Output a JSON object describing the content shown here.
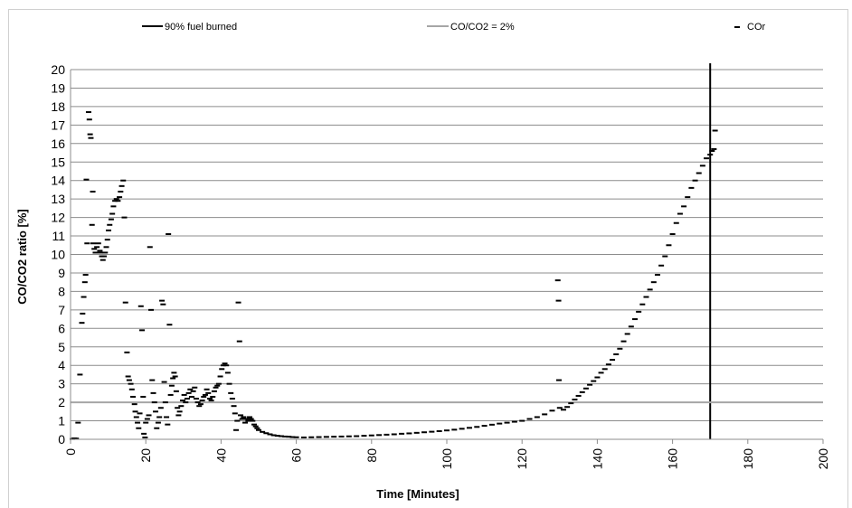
{
  "chart_data": {
    "type": "scatter",
    "xlabel": "Time [Minutes]",
    "ylabel": "CO/CO2 ratio [%]",
    "xlim": [
      0,
      200
    ],
    "ylim": [
      0,
      20
    ],
    "x_ticks": [
      "0",
      "20",
      "40",
      "60",
      "80",
      "100",
      "120",
      "140",
      "160",
      "180",
      "200"
    ],
    "y_ticks": [
      "0",
      "1",
      "2",
      "3",
      "4",
      "5",
      "6",
      "7",
      "8",
      "9",
      "10",
      "11",
      "12",
      "13",
      "14",
      "15",
      "16",
      "17",
      "18",
      "19",
      "20"
    ],
    "grid": "horizontal",
    "legend_position": "top",
    "series": [
      {
        "name": "90% fuel burned",
        "kind": "vertical-line",
        "x": 170,
        "color": "#000000"
      },
      {
        "name": "CO/CO2 = 2%",
        "kind": "horizontal-line",
        "y": 2,
        "color": "#a6a6a6"
      },
      {
        "name": "COr",
        "kind": "markers",
        "color": "#000000",
        "points": [
          [
            0.5,
            0.02
          ],
          [
            1,
            0.05
          ],
          [
            1.5,
            0.04
          ],
          [
            2,
            0.9
          ],
          [
            2.5,
            3.5
          ],
          [
            3,
            6.3
          ],
          [
            3.2,
            6.8
          ],
          [
            3.5,
            7.7
          ],
          [
            3.8,
            8.5
          ],
          [
            4,
            8.9
          ],
          [
            4.2,
            14.05
          ],
          [
            4.4,
            10.6
          ],
          [
            4.8,
            17.7
          ],
          [
            5,
            17.3
          ],
          [
            5.2,
            16.5
          ],
          [
            5.4,
            16.3
          ],
          [
            5.7,
            11.6
          ],
          [
            5.9,
            13.4
          ],
          [
            6,
            10.6
          ],
          [
            6.3,
            10.3
          ],
          [
            6.6,
            10.1
          ],
          [
            7,
            10.4
          ],
          [
            7.4,
            10.6
          ],
          [
            7.8,
            10.2
          ],
          [
            8,
            10.1
          ],
          [
            8.3,
            9.9
          ],
          [
            8.6,
            9.7
          ],
          [
            8.9,
            9.9
          ],
          [
            9.2,
            10.1
          ],
          [
            9.5,
            10.4
          ],
          [
            9.8,
            10.8
          ],
          [
            10.1,
            11.3
          ],
          [
            10.4,
            11.6
          ],
          [
            10.8,
            11.9
          ],
          [
            11.1,
            12.2
          ],
          [
            11.4,
            12.6
          ],
          [
            11.8,
            12.9
          ],
          [
            12.2,
            13.0
          ],
          [
            12.6,
            12.9
          ],
          [
            13,
            13.1
          ],
          [
            13.3,
            13.4
          ],
          [
            13.6,
            13.7
          ],
          [
            14,
            14.0
          ],
          [
            14.3,
            12.0
          ],
          [
            14.6,
            7.4
          ],
          [
            15,
            4.7
          ],
          [
            15.3,
            3.4
          ],
          [
            15.6,
            3.2
          ],
          [
            16,
            3.0
          ],
          [
            16.3,
            2.7
          ],
          [
            16.6,
            2.3
          ],
          [
            17,
            1.9
          ],
          [
            17.2,
            1.5
          ],
          [
            17.5,
            1.2
          ],
          [
            17.8,
            0.9
          ],
          [
            18.1,
            0.6
          ],
          [
            18.4,
            1.4
          ],
          [
            18.7,
            7.2
          ],
          [
            19,
            5.9
          ],
          [
            19.3,
            2.3
          ],
          [
            19.5,
            0.3
          ],
          [
            19.8,
            0.1
          ],
          [
            20,
            0.9
          ],
          [
            20.4,
            1.1
          ],
          [
            20.8,
            1.3
          ],
          [
            21.1,
            10.4
          ],
          [
            21.4,
            7.0
          ],
          [
            21.7,
            3.2
          ],
          [
            22,
            2.5
          ],
          [
            22.3,
            2.0
          ],
          [
            22.6,
            1.5
          ],
          [
            22.9,
            0.6
          ],
          [
            23.3,
            0.9
          ],
          [
            23.6,
            1.2
          ],
          [
            24,
            1.7
          ],
          [
            24.3,
            7.5
          ],
          [
            24.6,
            7.3
          ],
          [
            24.9,
            3.1
          ],
          [
            25.2,
            2.0
          ],
          [
            25.5,
            1.2
          ],
          [
            25.8,
            0.8
          ],
          [
            26,
            11.1
          ],
          [
            26.3,
            6.2
          ],
          [
            26.6,
            2.4
          ],
          [
            26.9,
            2.9
          ],
          [
            27.2,
            3.3
          ],
          [
            27.5,
            3.6
          ],
          [
            27.8,
            3.4
          ],
          [
            28.1,
            2.6
          ],
          [
            28.4,
            1.7
          ],
          [
            28.7,
            1.3
          ],
          [
            29,
            1.5
          ],
          [
            29.4,
            1.8
          ],
          [
            29.8,
            2.1
          ],
          [
            30.2,
            2.4
          ],
          [
            30.6,
            2.0
          ],
          [
            31,
            2.2
          ],
          [
            31.4,
            2.5
          ],
          [
            31.8,
            2.7
          ],
          [
            32.2,
            2.3
          ],
          [
            32.6,
            2.6
          ],
          [
            33,
            2.8
          ],
          [
            33.4,
            2.2
          ],
          [
            33.8,
            2.0
          ],
          [
            34.2,
            1.8
          ],
          [
            34.6,
            1.9
          ],
          [
            35,
            2.1
          ],
          [
            35.4,
            2.3
          ],
          [
            35.8,
            2.4
          ],
          [
            36.2,
            2.7
          ],
          [
            36.6,
            2.5
          ],
          [
            37,
            2.2
          ],
          [
            37.4,
            2.1
          ],
          [
            37.8,
            2.3
          ],
          [
            38.2,
            2.6
          ],
          [
            38.6,
            2.8
          ],
          [
            39,
            2.9
          ],
          [
            39.4,
            3.0
          ],
          [
            39.8,
            3.4
          ],
          [
            40.2,
            3.8
          ],
          [
            40.6,
            4.0
          ],
          [
            41,
            4.1
          ],
          [
            41.4,
            4.0
          ],
          [
            41.8,
            3.6
          ],
          [
            42.2,
            3.0
          ],
          [
            42.6,
            2.5
          ],
          [
            43,
            2.2
          ],
          [
            43.4,
            1.8
          ],
          [
            43.7,
            1.4
          ],
          [
            44,
            0.5
          ],
          [
            44.3,
            1.0
          ],
          [
            44.6,
            7.4
          ],
          [
            44.9,
            5.3
          ],
          [
            45.2,
            1.3
          ],
          [
            45.6,
            1.1
          ],
          [
            46,
            1.2
          ],
          [
            46.4,
            0.9
          ],
          [
            46.8,
            1.1
          ],
          [
            47.2,
            1.0
          ],
          [
            47.6,
            1.2
          ],
          [
            48,
            1.1
          ],
          [
            48.4,
            1.0
          ],
          [
            48.8,
            0.8
          ],
          [
            49.2,
            0.7
          ],
          [
            49.6,
            0.6
          ],
          [
            50,
            0.5
          ],
          [
            51,
            0.4
          ],
          [
            52,
            0.33
          ],
          [
            53,
            0.27
          ],
          [
            54,
            0.22
          ],
          [
            55,
            0.19
          ],
          [
            56,
            0.17
          ],
          [
            57,
            0.15
          ],
          [
            58,
            0.14
          ],
          [
            59,
            0.12
          ],
          [
            60,
            0.11
          ],
          [
            62,
            0.1
          ],
          [
            64,
            0.11
          ],
          [
            66,
            0.12
          ],
          [
            68,
            0.13
          ],
          [
            70,
            0.14
          ],
          [
            72,
            0.15
          ],
          [
            74,
            0.16
          ],
          [
            76,
            0.17
          ],
          [
            78,
            0.19
          ],
          [
            80,
            0.21
          ],
          [
            82,
            0.23
          ],
          [
            84,
            0.25
          ],
          [
            86,
            0.27
          ],
          [
            88,
            0.3
          ],
          [
            90,
            0.32
          ],
          [
            92,
            0.35
          ],
          [
            94,
            0.38
          ],
          [
            96,
            0.41
          ],
          [
            98,
            0.44
          ],
          [
            100,
            0.48
          ],
          [
            102,
            0.52
          ],
          [
            104,
            0.57
          ],
          [
            106,
            0.62
          ],
          [
            108,
            0.67
          ],
          [
            110,
            0.73
          ],
          [
            112,
            0.79
          ],
          [
            114,
            0.85
          ],
          [
            116,
            0.9
          ],
          [
            118,
            0.95
          ],
          [
            120,
            1.0
          ],
          [
            122,
            1.1
          ],
          [
            124,
            1.2
          ],
          [
            126,
            1.35
          ],
          [
            128,
            1.55
          ],
          [
            129.5,
            8.6
          ],
          [
            129.7,
            7.5
          ],
          [
            129.8,
            3.2
          ],
          [
            130,
            1.7
          ],
          [
            131,
            1.6
          ],
          [
            132,
            1.75
          ],
          [
            133,
            1.95
          ],
          [
            134,
            2.15
          ],
          [
            135,
            2.35
          ],
          [
            136,
            2.55
          ],
          [
            137,
            2.75
          ],
          [
            138,
            2.95
          ],
          [
            139,
            3.15
          ],
          [
            140,
            3.35
          ],
          [
            141,
            3.6
          ],
          [
            142,
            3.8
          ],
          [
            143,
            4.05
          ],
          [
            144,
            4.3
          ],
          [
            145,
            4.6
          ],
          [
            146,
            4.9
          ],
          [
            147,
            5.3
          ],
          [
            148,
            5.7
          ],
          [
            149,
            6.1
          ],
          [
            150,
            6.5
          ],
          [
            151,
            6.9
          ],
          [
            152,
            7.3
          ],
          [
            153,
            7.7
          ],
          [
            154,
            8.1
          ],
          [
            155,
            8.5
          ],
          [
            156,
            8.9
          ],
          [
            157,
            9.4
          ],
          [
            158,
            9.9
          ],
          [
            159,
            10.5
          ],
          [
            160,
            11.1
          ],
          [
            161,
            11.7
          ],
          [
            162,
            12.2
          ],
          [
            163,
            12.6
          ],
          [
            164,
            13.1
          ],
          [
            165,
            13.6
          ],
          [
            166,
            14.0
          ],
          [
            167,
            14.4
          ],
          [
            168,
            14.8
          ],
          [
            169,
            15.2
          ],
          [
            170,
            15.4
          ],
          [
            170.5,
            15.6
          ],
          [
            171,
            15.7
          ],
          [
            171.3,
            16.7
          ]
        ]
      }
    ]
  }
}
